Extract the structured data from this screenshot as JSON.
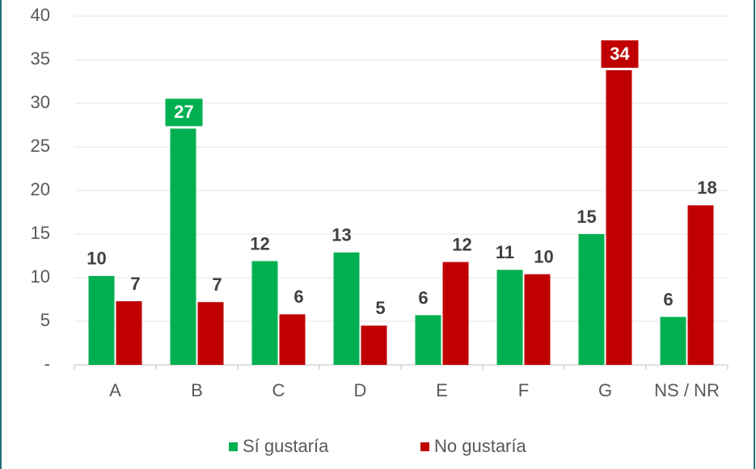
{
  "chart_data": {
    "type": "bar",
    "categories": [
      "A",
      "B",
      "C",
      "D",
      "E",
      "F",
      "G",
      "NS / NR"
    ],
    "series": [
      {
        "name": "Sí gustaría",
        "color": "#00b050",
        "values": [
          10.2,
          27.1,
          11.9,
          12.9,
          5.7,
          10.9,
          15.0,
          5.5
        ],
        "value_labels": [
          "10",
          "27",
          "12",
          "13",
          "6",
          "11",
          "15",
          "6"
        ]
      },
      {
        "name": "No gustaría",
        "color": "#c00000",
        "values": [
          7.3,
          7.2,
          5.8,
          4.5,
          11.8,
          10.4,
          33.8,
          18.3
        ],
        "value_labels": [
          "7",
          "7",
          "6",
          "5",
          "12",
          "10",
          "34",
          "18"
        ]
      }
    ],
    "ylim": [
      0,
      40
    ],
    "yticks": [
      {
        "value": 0,
        "label": "-"
      },
      5,
      10,
      15,
      20,
      25,
      30,
      35,
      40
    ],
    "grid": true,
    "legend": "bottom"
  }
}
